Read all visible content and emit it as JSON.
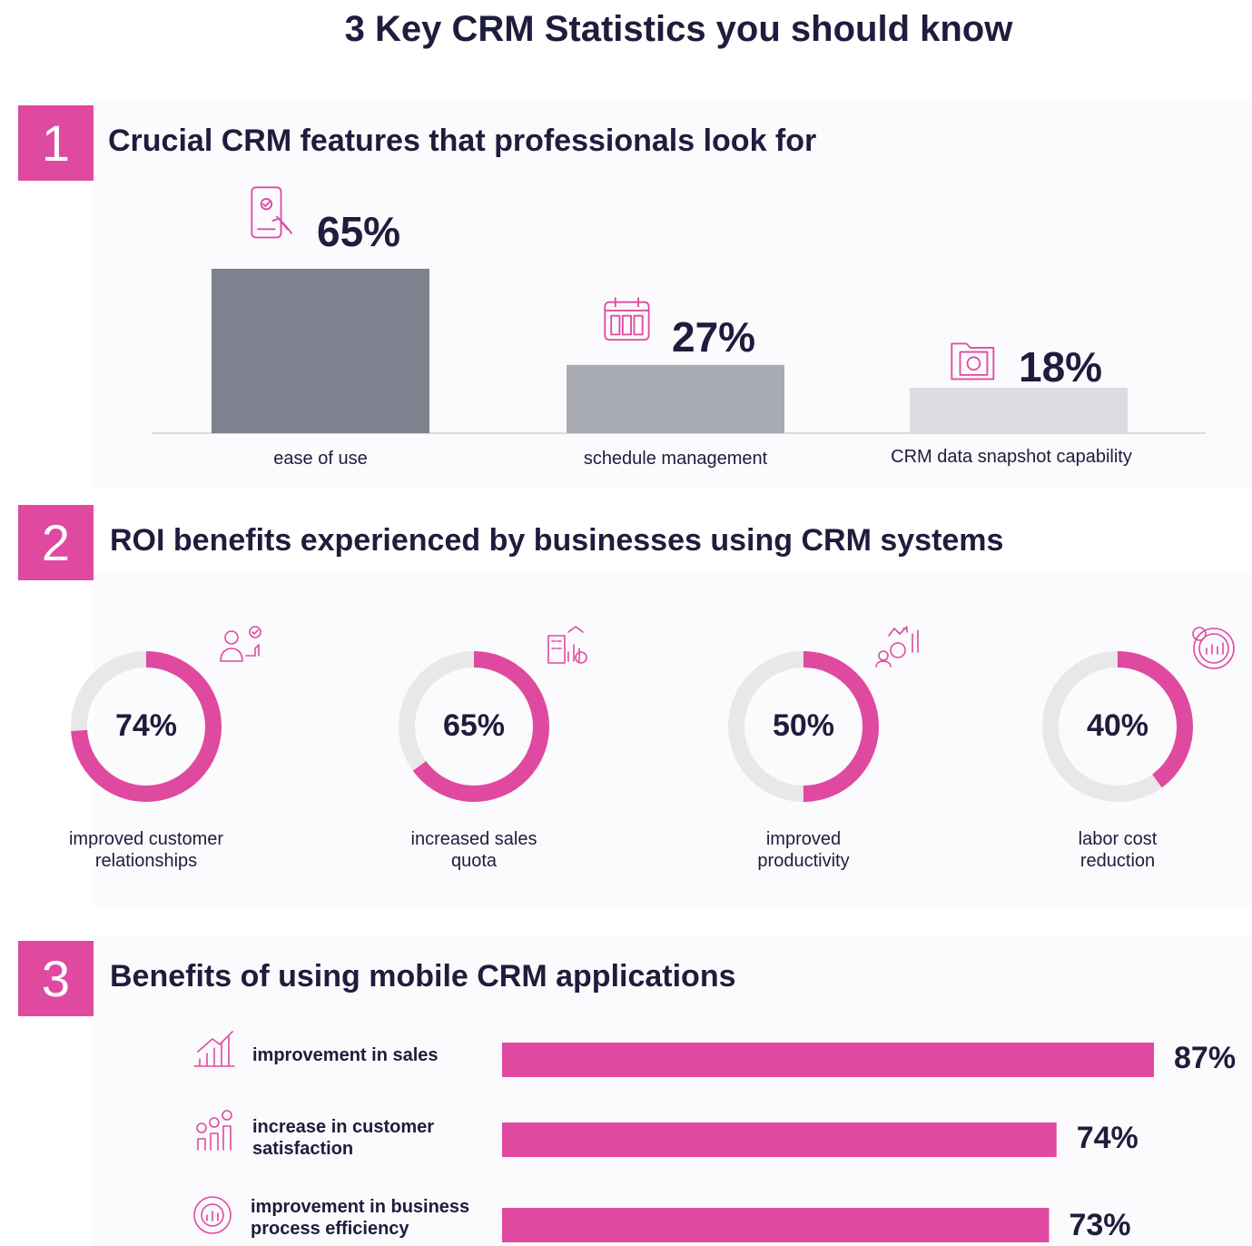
{
  "page_title": "3 Key CRM Statistics you should know",
  "colors": {
    "accent": "#df4aa0",
    "bar_dark": "#7e818e",
    "bar_mid": "#a9abb3",
    "bar_light": "#dcdce0",
    "ring_track": "#e8e8ea",
    "text": "#1e1d3d"
  },
  "sections": [
    {
      "number": "1",
      "title": "Crucial CRM features that professionals look for"
    },
    {
      "number": "2",
      "title": "ROI benefits experienced by businesses using CRM systems"
    },
    {
      "number": "3",
      "title": "Benefits of using mobile CRM applications"
    }
  ],
  "chart_data": [
    {
      "type": "bar",
      "title": "Crucial CRM features that professionals look for",
      "categories": [
        "ease of use",
        "schedule management",
        "CRM data snapshot capability"
      ],
      "values": [
        65,
        27,
        18
      ],
      "value_labels": [
        "65%",
        "27%",
        "18%"
      ],
      "icons": [
        "phone-touch-icon",
        "calendar-icon",
        "folder-snapshot-icon"
      ],
      "ylim": [
        0,
        65
      ]
    },
    {
      "type": "pie",
      "title": "ROI benefits experienced by businesses using CRM systems",
      "categories": [
        "improved customer relationships",
        "increased sales quota",
        "improved productivity",
        "labor cost reduction"
      ],
      "label_lines": [
        [
          "improved customer",
          "relationships"
        ],
        [
          "increased sales",
          "quota"
        ],
        [
          "improved",
          "productivity"
        ],
        [
          "labor cost",
          "reduction"
        ]
      ],
      "values": [
        74,
        65,
        50,
        40
      ],
      "value_labels": [
        "74%",
        "65%",
        "50%",
        "40%"
      ],
      "icons": [
        "customer-thumbs-up-icon",
        "sales-building-icon",
        "productivity-gear-icon",
        "percent-chart-icon"
      ]
    },
    {
      "type": "bar",
      "orientation": "horizontal",
      "title": "Benefits of using mobile CRM applications",
      "categories": [
        "improvement in sales",
        "increase in customer satisfaction",
        "improvement in business process efficiency"
      ],
      "label_lines": [
        [
          "improvement in sales"
        ],
        [
          "increase in customer",
          "satisfaction"
        ],
        [
          "improvement in business",
          "process efficiency"
        ]
      ],
      "values": [
        87,
        74,
        73
      ],
      "value_labels": [
        "87%",
        "74%",
        "73%"
      ],
      "icons": [
        "sales-growth-icon",
        "satisfaction-icon",
        "process-gear-icon"
      ],
      "xlim": [
        0,
        87
      ]
    }
  ]
}
